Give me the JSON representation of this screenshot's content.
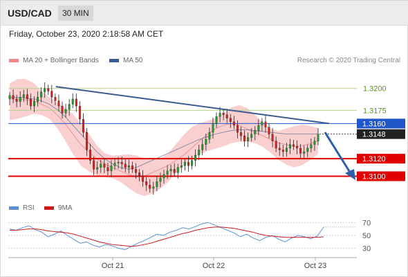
{
  "header": {
    "symbol": "USD/CAD",
    "timeframe": "30 MIN"
  },
  "datetime": "Friday, October 23, 2020 2:18:58 AM CET",
  "legend": {
    "ma_bollinger": "MA 20 + Bollinger Bands",
    "ma50": "MA 50",
    "rsi": "RSI",
    "rsi_ma": "9MA"
  },
  "copyright": "Research © 2020 Trading Central",
  "colors": {
    "bollinger": "#f4a7a7",
    "ma50": "#3a5a92",
    "resistance": "#1f57c9",
    "support": "#e00000",
    "target_line": "#b6d38a",
    "trendline": "#3a5a92",
    "arrow": "#2f5ea8",
    "rsi": "#5b8ed6",
    "rsi_ma": "#cc1a1a"
  },
  "chart_data": [
    {
      "type": "candlestick",
      "title": "USD/CAD 30 MIN",
      "ylim": [
        1.3072,
        1.3225
      ],
      "x_ticks": [
        "Oct 21",
        "Oct 22",
        "Oct 23"
      ],
      "last_price": 1.3148,
      "levels": [
        {
          "label": "1.3200",
          "value": 1.32,
          "kind": "target"
        },
        {
          "label": "1.3175",
          "value": 1.3175,
          "kind": "target"
        },
        {
          "label": "1.3160",
          "value": 1.316,
          "kind": "pivot"
        },
        {
          "label": "1.3148",
          "value": 1.3148,
          "kind": "last"
        },
        {
          "label": "1.3120",
          "value": 1.312,
          "kind": "support"
        },
        {
          "label": "1.3100",
          "value": 1.31,
          "kind": "support"
        }
      ],
      "trendline": {
        "from": [
          0.18,
          1.3202
        ],
        "to": [
          0.95,
          1.316
        ]
      },
      "forecast_arrow": {
        "from": [
          0.96,
          1.315
        ],
        "to": [
          1.07,
          1.3102
        ]
      },
      "close": [
        1.3192,
        1.3188,
        1.3185,
        1.319,
        1.3193,
        1.3188,
        1.318,
        1.3185,
        1.319,
        1.3196,
        1.32,
        1.3197,
        1.319,
        1.3186,
        1.318,
        1.3172,
        1.3176,
        1.3182,
        1.3188,
        1.318,
        1.3165,
        1.315,
        1.313,
        1.3118,
        1.3108,
        1.311,
        1.3114,
        1.311,
        1.3106,
        1.3112,
        1.3115,
        1.3116,
        1.3114,
        1.311,
        1.3112,
        1.3108,
        1.3104,
        1.31,
        1.3094,
        1.309,
        1.3086,
        1.3088,
        1.3094,
        1.3098,
        1.3102,
        1.3106,
        1.3108,
        1.3104,
        1.311,
        1.3112,
        1.3116,
        1.3112,
        1.3118,
        1.3124,
        1.313,
        1.3136,
        1.3142,
        1.315,
        1.316,
        1.3168,
        1.3172,
        1.317,
        1.3166,
        1.3162,
        1.3158,
        1.315,
        1.3146,
        1.314,
        1.3144,
        1.3148,
        1.3152,
        1.3158,
        1.3162,
        1.3156,
        1.3148,
        1.314,
        1.3132,
        1.313,
        1.3128,
        1.3132,
        1.3136,
        1.3134,
        1.3132,
        1.3126,
        1.3128,
        1.3132,
        1.3136,
        1.314,
        1.3148
      ],
      "series": [
        {
          "name": "MA 20 + Bollinger Bands",
          "band_center": [
            1.3188,
            1.3188,
            1.3187,
            1.3186,
            1.3182,
            1.3178,
            1.317,
            1.316,
            1.3148,
            1.3136,
            1.3128,
            1.312,
            1.3114,
            1.311,
            1.3106,
            1.3102,
            1.31,
            1.31,
            1.3104,
            1.3108,
            1.3112,
            1.3118,
            1.3124,
            1.3132,
            1.314,
            1.3148,
            1.3154,
            1.3158,
            1.316,
            1.3158,
            1.3154,
            1.315,
            1.3146,
            1.3142,
            1.3138,
            1.3136,
            1.3134,
            1.3135,
            1.3137,
            1.314
          ]
        },
        {
          "name": "MA 50",
          "values": [
            1.319,
            1.319,
            1.3189,
            1.3188,
            1.3186,
            1.3182,
            1.3176,
            1.3168,
            1.3158,
            1.3148,
            1.3138,
            1.3128,
            1.312,
            1.3114,
            1.311,
            1.3108,
            1.311,
            1.3114,
            1.3118,
            1.3122,
            1.3126,
            1.313,
            1.3134,
            1.3138,
            1.3142,
            1.3145,
            1.3148,
            1.315,
            1.3152,
            1.3153,
            1.3153,
            1.3152,
            1.3151,
            1.315,
            1.3149,
            1.3148,
            1.3148,
            1.3148,
            1.3148,
            1.3148
          ]
        }
      ]
    },
    {
      "type": "line",
      "title": "RSI",
      "ylim": [
        20,
        80
      ],
      "y_ticks": [
        "70",
        "50",
        "30"
      ],
      "series": [
        {
          "name": "RSI",
          "values": [
            60,
            58,
            62,
            65,
            59,
            55,
            48,
            52,
            57,
            50,
            44,
            38,
            40,
            35,
            32,
            36,
            34,
            30,
            28,
            33,
            38,
            42,
            47,
            52,
            50,
            55,
            58,
            62,
            60,
            64,
            68,
            70,
            66,
            62,
            58,
            54,
            48,
            52,
            46,
            42,
            47,
            50,
            44,
            40,
            46,
            50,
            48,
            45,
            49,
            63
          ]
        },
        {
          "name": "9MA",
          "values": [
            58,
            58,
            59,
            60,
            60,
            59,
            57,
            56,
            55,
            54,
            52,
            49,
            46,
            43,
            40,
            38,
            36,
            35,
            34,
            33,
            34,
            36,
            38,
            41,
            44,
            47,
            50,
            53,
            55,
            58,
            60,
            62,
            63,
            63,
            62,
            61,
            59,
            57,
            55,
            52,
            50,
            49,
            48,
            47,
            47,
            47,
            47,
            47,
            47,
            48
          ]
        }
      ]
    }
  ]
}
